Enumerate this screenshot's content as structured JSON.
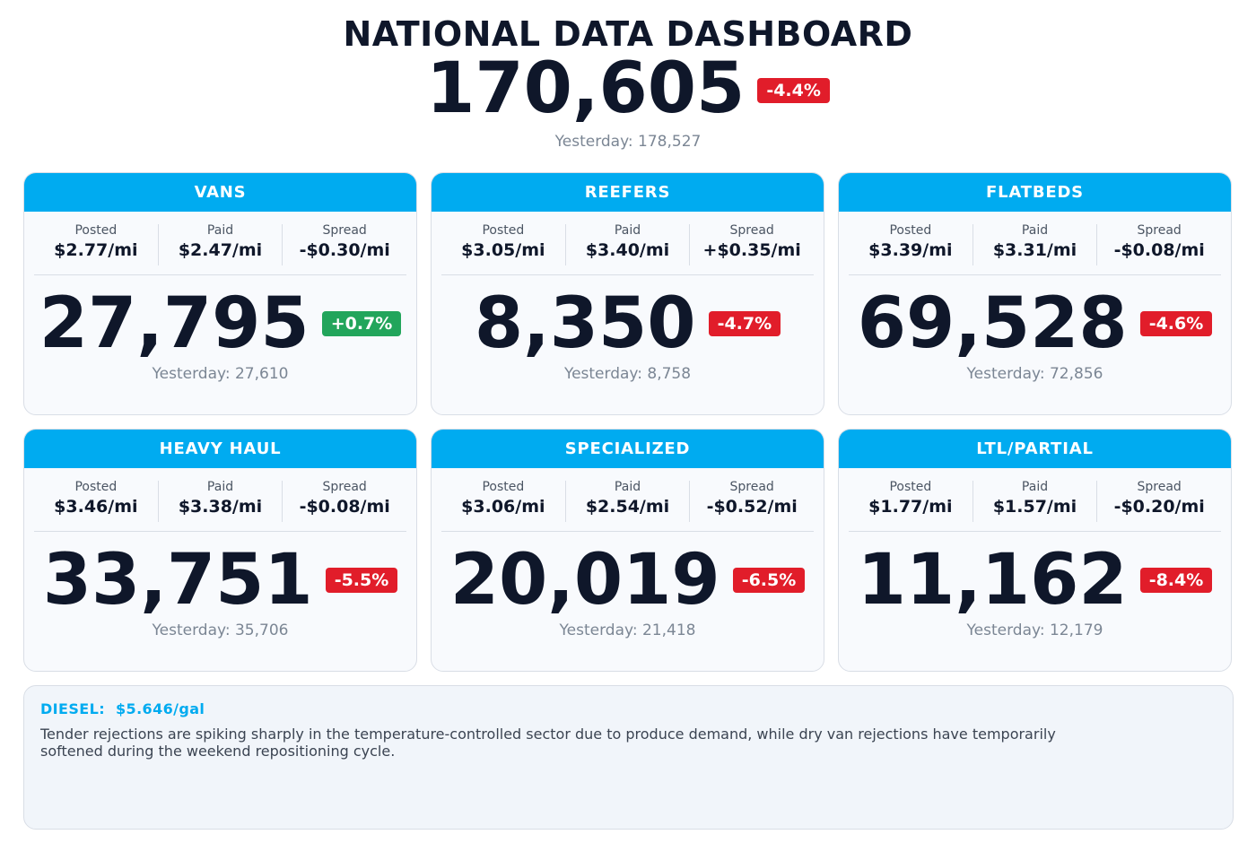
{
  "header": {
    "title": "NATIONAL DATA DASHBOARD",
    "total": "170,605",
    "total_change": "-4.4%",
    "total_change_direction": "negative",
    "yesterday": "Yesterday: 178,527"
  },
  "metric_labels": {
    "posted": "Posted",
    "paid": "Paid",
    "spread": "Spread"
  },
  "colors": {
    "header_blue": "#00abf0",
    "negative": "#e11d2a",
    "positive": "#22a55b",
    "text_dark": "#0f172a",
    "text_muted": "#7b8694"
  },
  "cards": [
    {
      "name": "VANS",
      "posted": "$2.77/mi",
      "paid": "$2.47/mi",
      "spread": "-$0.30/mi",
      "value": "27,795",
      "change": "+0.7%",
      "direction": "positive",
      "yesterday": "Yesterday: 27,610"
    },
    {
      "name": "REEFERS",
      "posted": "$3.05/mi",
      "paid": "$3.40/mi",
      "spread": "+$0.35/mi",
      "value": "8,350",
      "change": "-4.7%",
      "direction": "negative",
      "yesterday": "Yesterday: 8,758"
    },
    {
      "name": "FLATBEDS",
      "posted": "$3.39/mi",
      "paid": "$3.31/mi",
      "spread": "-$0.08/mi",
      "value": "69,528",
      "change": "-4.6%",
      "direction": "negative",
      "yesterday": "Yesterday: 72,856"
    },
    {
      "name": "HEAVY HAUL",
      "posted": "$3.46/mi",
      "paid": "$3.38/mi",
      "spread": "-$0.08/mi",
      "value": "33,751",
      "change": "-5.5%",
      "direction": "negative",
      "yesterday": "Yesterday: 35,706"
    },
    {
      "name": "SPECIALIZED",
      "posted": "$3.06/mi",
      "paid": "$2.54/mi",
      "spread": "-$0.52/mi",
      "value": "20,019",
      "change": "-6.5%",
      "direction": "negative",
      "yesterday": "Yesterday: 21,418"
    },
    {
      "name": "LTL/PARTIAL",
      "posted": "$1.77/mi",
      "paid": "$1.57/mi",
      "spread": "-$0.20/mi",
      "value": "11,162",
      "change": "-8.4%",
      "direction": "negative",
      "yesterday": "Yesterday: 12,179"
    }
  ],
  "note": {
    "diesel_label": "DIESEL:",
    "diesel_value": "$5.646/gal",
    "text": "Tender rejections are spiking sharply in the temperature-controlled sector due to produce demand, while dry van rejections have temporarily softened during the weekend repositioning cycle."
  }
}
